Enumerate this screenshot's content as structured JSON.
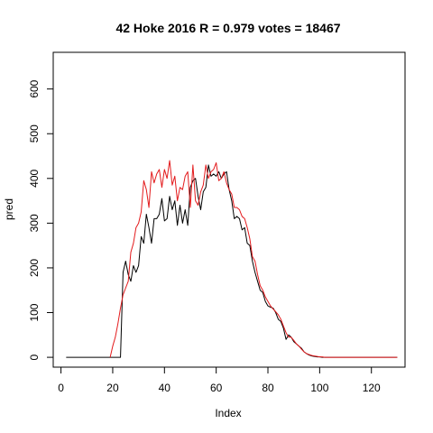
{
  "chart_data": {
    "type": "line",
    "title": "42 Hoke 2016 R = 0.979 votes = 18467",
    "xlabel": "Index",
    "ylabel": "pred",
    "xlim": [
      -3,
      133
    ],
    "ylim": [
      -22,
      682
    ],
    "xticks": [
      0,
      20,
      40,
      60,
      80,
      100,
      120
    ],
    "yticks": [
      0,
      100,
      200,
      300,
      400,
      500,
      600
    ],
    "grid": false,
    "legend": "none",
    "series": [
      {
        "color": "#000000",
        "x": [
          2,
          3,
          4,
          5,
          6,
          7,
          8,
          9,
          10,
          11,
          12,
          13,
          14,
          15,
          16,
          17,
          18,
          19,
          20,
          21,
          22,
          23,
          24,
          25,
          26,
          27,
          28,
          29,
          30,
          31,
          32,
          33,
          34,
          35,
          36,
          37,
          38,
          39,
          40,
          41,
          42,
          43,
          44,
          45,
          46,
          47,
          48,
          49,
          50,
          51,
          52,
          53,
          54,
          55,
          56,
          57,
          58,
          59,
          60,
          61,
          62,
          63,
          64,
          65,
          66,
          67,
          68,
          69,
          70,
          71,
          72,
          73,
          74,
          75,
          76,
          77,
          78,
          79,
          80,
          81,
          82,
          83,
          84,
          85,
          86,
          87,
          88,
          89,
          90,
          91,
          92,
          93,
          94,
          95,
          96,
          97,
          98,
          99,
          100,
          101,
          102,
          103,
          104,
          105,
          106,
          107,
          108,
          109,
          110,
          111,
          112,
          113,
          114,
          115,
          116,
          117,
          118,
          119,
          120,
          121,
          122,
          123,
          124,
          125,
          126,
          127,
          128,
          129,
          130
        ],
        "y": [
          0,
          0,
          0,
          0,
          0,
          0,
          0,
          0,
          0,
          0,
          0,
          0,
          0,
          0,
          0,
          0,
          0,
          0,
          0,
          0,
          0,
          0,
          190,
          215,
          185,
          170,
          205,
          190,
          205,
          270,
          255,
          320,
          290,
          255,
          310,
          310,
          320,
          355,
          305,
          310,
          360,
          330,
          350,
          295,
          340,
          300,
          330,
          295,
          380,
          395,
          400,
          360,
          330,
          370,
          380,
          430,
          405,
          410,
          405,
          415,
          400,
          410,
          415,
          375,
          350,
          310,
          315,
          310,
          285,
          290,
          255,
          250,
          215,
          190,
          170,
          150,
          145,
          125,
          115,
          112,
          110,
          100,
          85,
          80,
          65,
          40,
          50,
          45,
          35,
          30,
          25,
          20,
          12,
          8,
          5,
          3,
          2,
          1,
          1,
          0,
          0,
          0,
          0,
          0,
          0,
          0,
          0,
          0,
          0,
          0,
          0,
          0,
          0,
          0,
          0,
          0,
          0,
          0,
          0,
          0,
          0,
          0,
          0,
          0,
          0,
          0,
          0,
          0,
          0
        ]
      },
      {
        "color": "#e31a1c",
        "x": [
          19,
          20,
          21,
          22,
          23,
          24,
          25,
          26,
          27,
          28,
          29,
          30,
          31,
          32,
          33,
          34,
          35,
          36,
          37,
          38,
          39,
          40,
          41,
          42,
          43,
          44,
          45,
          46,
          47,
          48,
          49,
          50,
          51,
          52,
          53,
          54,
          55,
          56,
          57,
          58,
          59,
          60,
          61,
          62,
          63,
          64,
          65,
          66,
          67,
          68,
          69,
          70,
          71,
          72,
          73,
          74,
          75,
          76,
          77,
          78,
          79,
          80,
          81,
          82,
          83,
          84,
          85,
          86,
          87,
          88,
          89,
          90,
          91,
          92,
          93,
          94,
          95,
          96,
          97,
          98,
          99,
          100,
          101,
          102,
          103,
          104,
          105,
          106,
          107,
          108,
          109,
          110,
          111,
          112,
          113,
          114,
          115,
          116,
          117,
          118,
          119,
          120,
          121,
          122,
          123,
          124,
          125,
          126,
          127,
          128,
          129,
          130
        ],
        "y": [
          0,
          25,
          45,
          75,
          110,
          140,
          155,
          170,
          235,
          255,
          290,
          300,
          325,
          395,
          375,
          335,
          415,
          390,
          410,
          420,
          380,
          420,
          400,
          440,
          385,
          405,
          350,
          380,
          375,
          405,
          415,
          335,
          430,
          350,
          340,
          370,
          385,
          430,
          400,
          415,
          420,
          435,
          395,
          400,
          415,
          390,
          375,
          365,
          335,
          335,
          330,
          315,
          310,
          290,
          265,
          225,
          215,
          185,
          160,
          150,
          135,
          125,
          115,
          108,
          102,
          95,
          85,
          70,
          55,
          45,
          45,
          38,
          30,
          25,
          18,
          12,
          8,
          6,
          4,
          3,
          2,
          1,
          1,
          0,
          0,
          0,
          0,
          0,
          0,
          0,
          0,
          0,
          0,
          0,
          0,
          0,
          0,
          0,
          0,
          0,
          0,
          0,
          0,
          0,
          0,
          0,
          0,
          0,
          0,
          0,
          0,
          0
        ]
      }
    ]
  }
}
